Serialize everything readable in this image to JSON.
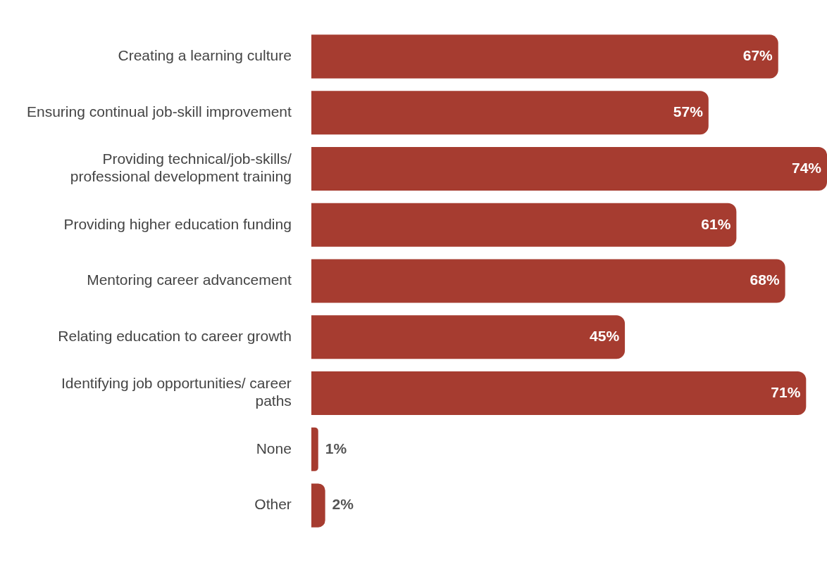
{
  "chart_data": {
    "type": "bar",
    "orientation": "horizontal",
    "categories": [
      "Creating a learning culture",
      "Ensuring continual job-skill improvement",
      "Providing technical/job-skills/ professional development training",
      "Providing higher education funding",
      "Mentoring career advancement",
      "Relating education to career growth",
      "Identifying job opportunities/ career paths",
      "None",
      "Other"
    ],
    "values": [
      67,
      57,
      74,
      61,
      68,
      45,
      71,
      1,
      2
    ],
    "value_labels": [
      "67%",
      "57%",
      "74%",
      "61%",
      "68%",
      "45%",
      "71%",
      "1%",
      "2%"
    ],
    "color": "#a63c30",
    "grid": false,
    "legend": false
  }
}
